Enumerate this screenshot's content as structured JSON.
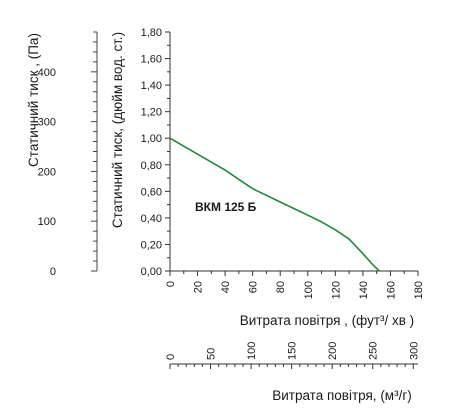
{
  "chart_data": {
    "type": "line",
    "annotation": "ВКМ 125 Б",
    "left_axis": {
      "label": "Статичний тиск , (Па)",
      "ticks": [
        0,
        100,
        200,
        300,
        400
      ],
      "range": [
        0,
        480
      ]
    },
    "y": {
      "label": "Статичний тиск, (дюйм вод. ст.)",
      "ticks": [
        "0,00",
        "0,20",
        "0,40",
        "0,60",
        "0,80",
        "1,00",
        "1,20",
        "1,40",
        "1,60",
        "1,80"
      ],
      "tick_values": [
        0,
        0.2,
        0.4,
        0.6,
        0.8,
        1.0,
        1.2,
        1.4,
        1.6,
        1.8
      ],
      "range": [
        0,
        1.8
      ]
    },
    "x": {
      "label": "Витрата повітря , (фут³/  хв )",
      "ticks": [
        "0",
        "20",
        "40",
        "60",
        "80",
        "100",
        "120",
        "140",
        "160",
        "180"
      ],
      "tick_values": [
        0,
        20,
        40,
        60,
        80,
        100,
        120,
        140,
        160,
        180
      ],
      "range": [
        0,
        180
      ]
    },
    "x2": {
      "label": "Витрата повітря, (м³/г)",
      "ticks": [
        "0",
        "50",
        "100",
        "150",
        "200",
        "250",
        "300"
      ],
      "tick_values": [
        0,
        50,
        100,
        150,
        200,
        250,
        300
      ],
      "range": [
        0,
        305.8
      ]
    },
    "series": [
      {
        "color": "#1f8a3a",
        "points": [
          [
            0,
            1.0
          ],
          [
            10,
            0.94
          ],
          [
            20,
            0.88
          ],
          [
            30,
            0.82
          ],
          [
            40,
            0.76
          ],
          [
            50,
            0.69
          ],
          [
            60,
            0.62
          ],
          [
            70,
            0.57
          ],
          [
            80,
            0.52
          ],
          [
            90,
            0.47
          ],
          [
            100,
            0.42
          ],
          [
            110,
            0.37
          ],
          [
            120,
            0.31
          ],
          [
            130,
            0.24
          ],
          [
            140,
            0.13
          ],
          [
            147,
            0.05
          ],
          [
            152,
            0.0
          ]
        ]
      }
    ],
    "grid": false
  }
}
